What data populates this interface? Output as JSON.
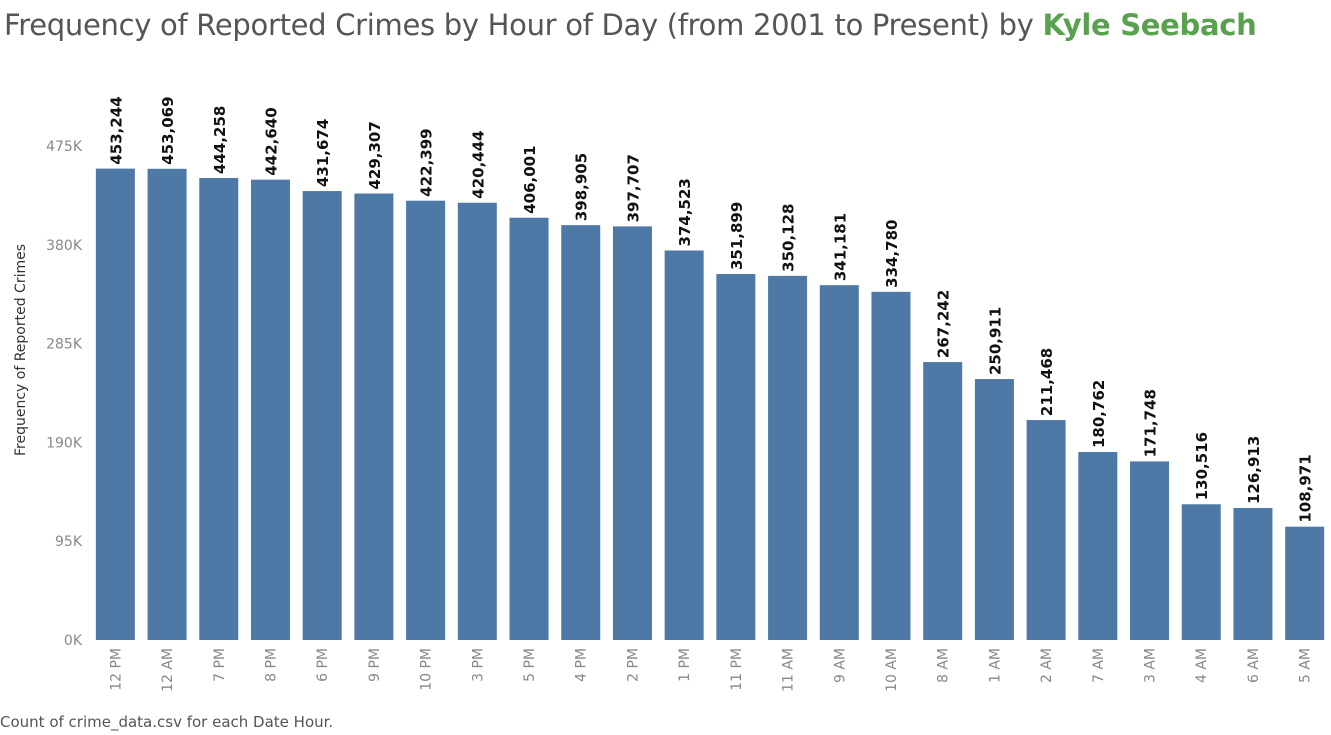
{
  "title": {
    "main": "Frequency of Reported Crimes by Hour of Day (from 2001 to Present) by ",
    "author": "Kyle Seebach"
  },
  "footer": "Count of crime_data.csv for each Date Hour.",
  "colors": {
    "bar": "#4e79a7",
    "author": "#59a14f",
    "title": "#555555"
  },
  "chart_data": {
    "type": "bar",
    "title": "Frequency of Reported Crimes by Hour of Day (from 2001 to Present) by Kyle Seebach",
    "xlabel": "",
    "ylabel": "Frequency of Reported Crimes",
    "ylim": [
      0,
      475000
    ],
    "yticks": [
      0,
      95000,
      190000,
      285000,
      380000,
      475000
    ],
    "ytick_labels": [
      "0K",
      "95K",
      "190K",
      "285K",
      "380K",
      "475K"
    ],
    "categories": [
      "12 PM",
      "12 AM",
      "7 PM",
      "8 PM",
      "6 PM",
      "9 PM",
      "10 PM",
      "3 PM",
      "5 PM",
      "4 PM",
      "2 PM",
      "1 PM",
      "11 PM",
      "11 AM",
      "9 AM",
      "10 AM",
      "8 AM",
      "1 AM",
      "2 AM",
      "7 AM",
      "3 AM",
      "4 AM",
      "6 AM",
      "5 AM"
    ],
    "values": [
      453244,
      453069,
      444258,
      442640,
      431674,
      429307,
      422399,
      420444,
      406001,
      398905,
      397707,
      374523,
      351899,
      350128,
      341181,
      334780,
      267242,
      250911,
      211468,
      180762,
      171748,
      130516,
      126913,
      108971
    ],
    "value_labels": [
      "453,244",
      "453,069",
      "444,258",
      "442,640",
      "431,674",
      "429,307",
      "422,399",
      "420,444",
      "406,001",
      "398,905",
      "397,707",
      "374,523",
      "351,899",
      "350,128",
      "341,181",
      "334,780",
      "267,242",
      "250,911",
      "211,468",
      "180,762",
      "171,748",
      "130,516",
      "126,913",
      "108,971"
    ],
    "grid": false,
    "legend": "none"
  }
}
